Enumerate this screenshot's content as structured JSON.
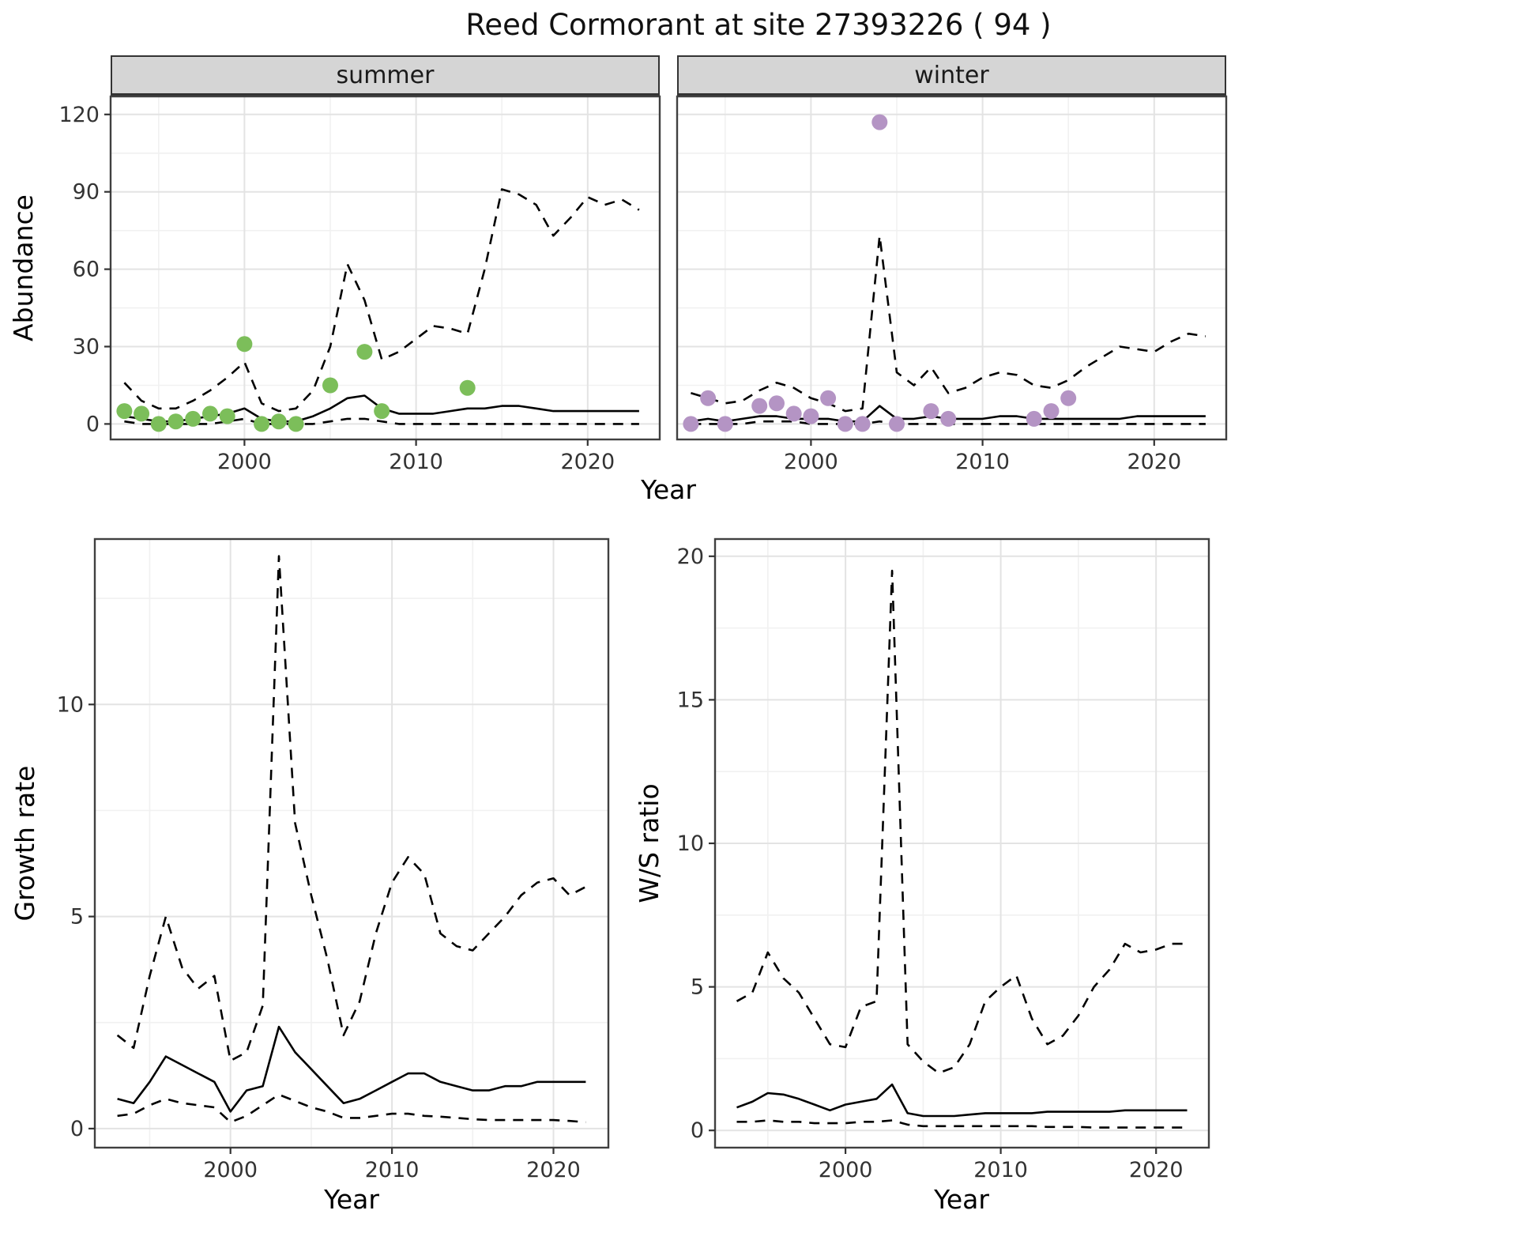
{
  "title": "Reed Cormorant at site 27393226 ( 94 )",
  "style": {
    "summer_point_color": "#7cbe5a",
    "winter_point_color": "#b494c4",
    "line_color": "#000000",
    "strip_bg": "#d5d5d5",
    "panel_border": "#404040",
    "grid_major": "#e3e3e3",
    "grid_minor": "#f1f1f1",
    "tick_color": "#333333"
  },
  "chart_data": [
    {
      "id": "abundance-summer",
      "type": "line",
      "facet": "summer",
      "xlabel": "Year",
      "ylabel": "Abundance",
      "legend": "none",
      "grid": "major+minor",
      "xlim": [
        1992.2,
        2024.2
      ],
      "ylim": [
        -6,
        127
      ],
      "xticks": [
        2000,
        2010,
        2020
      ],
      "yticks": [
        0,
        30,
        60,
        90,
        120
      ],
      "series": [
        {
          "name": "median",
          "style": "solid",
          "x": [
            1993,
            1994,
            1995,
            1996,
            1997,
            1998,
            1999,
            2000,
            2001,
            2002,
            2003,
            2004,
            2005,
            2006,
            2007,
            2008,
            2009,
            2010,
            2011,
            2012,
            2013,
            2014,
            2015,
            2016,
            2017,
            2018,
            2019,
            2020,
            2021,
            2022,
            2023
          ],
          "y": [
            3,
            2,
            1,
            1,
            2,
            3,
            4,
            6,
            2,
            1,
            1,
            3,
            6,
            10,
            11,
            6,
            4,
            4,
            4,
            5,
            6,
            6,
            7,
            7,
            6,
            5,
            5,
            5,
            5,
            5,
            5
          ]
        },
        {
          "name": "upper95",
          "style": "dashed",
          "x": [
            1993,
            1994,
            1995,
            1996,
            1997,
            1998,
            1999,
            2000,
            2001,
            2002,
            2003,
            2004,
            2005,
            2006,
            2007,
            2008,
            2009,
            2010,
            2011,
            2012,
            2013,
            2014,
            2015,
            2016,
            2017,
            2018,
            2019,
            2020,
            2021,
            2022,
            2023
          ],
          "y": [
            16,
            9,
            6,
            6,
            9,
            13,
            18,
            24,
            8,
            5,
            6,
            13,
            30,
            62,
            48,
            25,
            28,
            33,
            38,
            37,
            35,
            60,
            91,
            89,
            85,
            73,
            80,
            88,
            85,
            87,
            83
          ]
        },
        {
          "name": "lower95",
          "style": "dashed",
          "x": [
            1993,
            1994,
            1995,
            1996,
            1997,
            1998,
            1999,
            2000,
            2001,
            2002,
            2003,
            2004,
            2005,
            2006,
            2007,
            2008,
            2009,
            2010,
            2011,
            2012,
            2013,
            2014,
            2015,
            2016,
            2017,
            2018,
            2019,
            2020,
            2021,
            2022,
            2023
          ],
          "y": [
            1,
            0,
            0,
            0,
            0,
            0,
            1,
            2,
            0,
            0,
            0,
            0,
            1,
            2,
            2,
            1,
            0,
            0,
            0,
            0,
            0,
            0,
            0,
            0,
            0,
            0,
            0,
            0,
            0,
            0,
            0
          ]
        }
      ],
      "points": {
        "name": "observed-summer-counts",
        "color_key": "summer_point_color",
        "x": [
          1993,
          1994,
          1995,
          1996,
          1997,
          1998,
          1999,
          2000,
          2001,
          2002,
          2003,
          2005,
          2007,
          2008,
          2013
        ],
        "y": [
          5,
          4,
          0,
          1,
          2,
          4,
          3,
          31,
          0,
          1,
          0,
          15,
          28,
          5,
          14
        ]
      }
    },
    {
      "id": "abundance-winter",
      "type": "line",
      "facet": "winter",
      "xlabel": "Year",
      "ylabel": "Abundance",
      "legend": "none",
      "grid": "major+minor",
      "xlim": [
        1992.2,
        2024.2
      ],
      "ylim": [
        -6,
        127
      ],
      "xticks": [
        2000,
        2010,
        2020
      ],
      "yticks": [
        0,
        30,
        60,
        90,
        120
      ],
      "series": [
        {
          "name": "median",
          "style": "solid",
          "x": [
            1993,
            1994,
            1995,
            1996,
            1997,
            1998,
            1999,
            2000,
            2001,
            2002,
            2003,
            2004,
            2005,
            2006,
            2007,
            2008,
            2009,
            2010,
            2011,
            2012,
            2013,
            2014,
            2015,
            2016,
            2017,
            2018,
            2019,
            2020,
            2021,
            2022,
            2023
          ],
          "y": [
            1,
            2,
            1,
            2,
            3,
            3,
            2,
            2,
            2,
            1,
            1,
            7,
            2,
            2,
            3,
            2,
            2,
            2,
            3,
            3,
            2,
            2,
            2,
            2,
            2,
            2,
            3,
            3,
            3,
            3,
            3
          ]
        },
        {
          "name": "upper95",
          "style": "dashed",
          "x": [
            1993,
            1994,
            1995,
            1996,
            1997,
            1998,
            1999,
            2000,
            2001,
            2002,
            2003,
            2004,
            2005,
            2006,
            2007,
            2008,
            2009,
            2010,
            2011,
            2012,
            2013,
            2014,
            2015,
            2016,
            2017,
            2018,
            2019,
            2020,
            2021,
            2022,
            2023
          ],
          "y": [
            12,
            10,
            8,
            9,
            13,
            16,
            14,
            10,
            8,
            5,
            6,
            73,
            20,
            15,
            22,
            12,
            14,
            18,
            20,
            19,
            15,
            14,
            17,
            22,
            26,
            30,
            29,
            28,
            32,
            35,
            34
          ]
        },
        {
          "name": "lower95",
          "style": "dashed",
          "x": [
            1993,
            1994,
            1995,
            1996,
            1997,
            1998,
            1999,
            2000,
            2001,
            2002,
            2003,
            2004,
            2005,
            2006,
            2007,
            2008,
            2009,
            2010,
            2011,
            2012,
            2013,
            2014,
            2015,
            2016,
            2017,
            2018,
            2019,
            2020,
            2021,
            2022,
            2023
          ],
          "y": [
            0,
            0,
            0,
            0,
            1,
            1,
            1,
            0,
            0,
            0,
            0,
            1,
            0,
            0,
            0,
            0,
            0,
            0,
            0,
            0,
            0,
            0,
            0,
            0,
            0,
            0,
            0,
            0,
            0,
            0,
            0
          ]
        }
      ],
      "points": {
        "name": "observed-winter-counts",
        "color_key": "winter_point_color",
        "x": [
          1993,
          1994,
          1995,
          1997,
          1998,
          1999,
          2000,
          2001,
          2002,
          2003,
          2004,
          2005,
          2007,
          2008,
          2013,
          2014,
          2015
        ],
        "y": [
          0,
          10,
          0,
          7,
          8,
          4,
          3,
          10,
          0,
          0,
          117,
          0,
          5,
          2,
          2,
          5,
          10
        ]
      }
    },
    {
      "id": "growth-rate",
      "type": "line",
      "facet": null,
      "xlabel": "Year",
      "ylabel": "Growth rate",
      "legend": "none",
      "grid": "major+minor",
      "xlim": [
        1991.6,
        2023.4
      ],
      "ylim": [
        -0.45,
        13.9
      ],
      "xticks": [
        2000,
        2010,
        2020
      ],
      "yticks": [
        0,
        5,
        10
      ],
      "series": [
        {
          "name": "median",
          "style": "solid",
          "x": [
            1993,
            1994,
            1995,
            1996,
            1997,
            1998,
            1999,
            2000,
            2001,
            2002,
            2003,
            2004,
            2005,
            2006,
            2007,
            2008,
            2009,
            2010,
            2011,
            2012,
            2013,
            2014,
            2015,
            2016,
            2017,
            2018,
            2019,
            2020,
            2021,
            2022
          ],
          "y": [
            0.7,
            0.6,
            1.1,
            1.7,
            1.5,
            1.3,
            1.1,
            0.4,
            0.9,
            1.0,
            2.4,
            1.8,
            1.4,
            1.0,
            0.6,
            0.7,
            0.9,
            1.1,
            1.3,
            1.3,
            1.1,
            1.0,
            0.9,
            0.9,
            1.0,
            1.0,
            1.1,
            1.1,
            1.1,
            1.1
          ]
        },
        {
          "name": "upper95",
          "style": "dashed",
          "x": [
            1993,
            1994,
            1995,
            1996,
            1997,
            1998,
            1999,
            2000,
            2001,
            2002,
            2003,
            2004,
            2005,
            2006,
            2007,
            2008,
            2009,
            2010,
            2011,
            2012,
            2013,
            2014,
            2015,
            2016,
            2017,
            2018,
            2019,
            2020,
            2021,
            2022
          ],
          "y": [
            2.2,
            1.9,
            3.6,
            5.0,
            3.8,
            3.3,
            3.6,
            1.6,
            1.8,
            2.9,
            13.5,
            7.2,
            5.5,
            4.0,
            2.2,
            3.0,
            4.6,
            5.8,
            6.4,
            6.0,
            4.6,
            4.3,
            4.2,
            4.6,
            5.0,
            5.5,
            5.8,
            5.9,
            5.5,
            5.7
          ]
        },
        {
          "name": "lower95",
          "style": "dashed",
          "x": [
            1993,
            1994,
            1995,
            1996,
            1997,
            1998,
            1999,
            2000,
            2001,
            2002,
            2003,
            2004,
            2005,
            2006,
            2007,
            2008,
            2009,
            2010,
            2011,
            2012,
            2013,
            2014,
            2015,
            2016,
            2017,
            2018,
            2019,
            2020,
            2021,
            2022
          ],
          "y": [
            0.3,
            0.35,
            0.55,
            0.7,
            0.6,
            0.55,
            0.5,
            0.15,
            0.3,
            0.55,
            0.8,
            0.65,
            0.5,
            0.4,
            0.25,
            0.25,
            0.3,
            0.35,
            0.35,
            0.3,
            0.28,
            0.25,
            0.22,
            0.2,
            0.2,
            0.2,
            0.2,
            0.2,
            0.18,
            0.15
          ]
        }
      ],
      "points": null
    },
    {
      "id": "ws-ratio",
      "type": "line",
      "facet": null,
      "xlabel": "Year",
      "ylabel": "W/S ratio",
      "legend": "none",
      "grid": "major+minor",
      "xlim": [
        1991.6,
        2023.4
      ],
      "ylim": [
        -0.6,
        20.6
      ],
      "xticks": [
        2000,
        2010,
        2020
      ],
      "yticks": [
        0,
        5,
        10,
        15,
        20
      ],
      "series": [
        {
          "name": "median",
          "style": "solid",
          "x": [
            1993,
            1994,
            1995,
            1996,
            1997,
            1998,
            1999,
            2000,
            2001,
            2002,
            2003,
            2004,
            2005,
            2006,
            2007,
            2008,
            2009,
            2010,
            2011,
            2012,
            2013,
            2014,
            2015,
            2016,
            2017,
            2018,
            2019,
            2020,
            2021,
            2022
          ],
          "y": [
            0.8,
            1.0,
            1.3,
            1.25,
            1.1,
            0.9,
            0.7,
            0.9,
            1.0,
            1.1,
            1.6,
            0.6,
            0.5,
            0.5,
            0.5,
            0.55,
            0.6,
            0.6,
            0.6,
            0.6,
            0.65,
            0.65,
            0.65,
            0.65,
            0.65,
            0.7,
            0.7,
            0.7,
            0.7,
            0.7
          ]
        },
        {
          "name": "upper95",
          "style": "dashed",
          "x": [
            1993,
            1994,
            1995,
            1996,
            1997,
            1998,
            1999,
            2000,
            2001,
            2002,
            2003,
            2004,
            2005,
            2006,
            2007,
            2008,
            2009,
            2010,
            2011,
            2012,
            2013,
            2014,
            2015,
            2016,
            2017,
            2018,
            2019,
            2020,
            2021,
            2022
          ],
          "y": [
            4.5,
            4.8,
            6.2,
            5.3,
            4.8,
            3.9,
            3.0,
            2.9,
            4.3,
            4.5,
            19.5,
            3.0,
            2.4,
            2.0,
            2.2,
            3.0,
            4.5,
            5.0,
            5.4,
            3.9,
            3.0,
            3.3,
            4.0,
            5.0,
            5.6,
            6.5,
            6.2,
            6.3,
            6.5,
            6.5
          ]
        },
        {
          "name": "lower95",
          "style": "dashed",
          "x": [
            1993,
            1994,
            1995,
            1996,
            1997,
            1998,
            1999,
            2000,
            2001,
            2002,
            2003,
            2004,
            2005,
            2006,
            2007,
            2008,
            2009,
            2010,
            2011,
            2012,
            2013,
            2014,
            2015,
            2016,
            2017,
            2018,
            2019,
            2020,
            2021,
            2022
          ],
          "y": [
            0.3,
            0.3,
            0.35,
            0.3,
            0.3,
            0.25,
            0.25,
            0.25,
            0.3,
            0.3,
            0.35,
            0.2,
            0.15,
            0.15,
            0.15,
            0.15,
            0.15,
            0.15,
            0.15,
            0.15,
            0.12,
            0.12,
            0.12,
            0.1,
            0.1,
            0.1,
            0.1,
            0.1,
            0.1,
            0.1
          ]
        }
      ],
      "points": null
    }
  ]
}
